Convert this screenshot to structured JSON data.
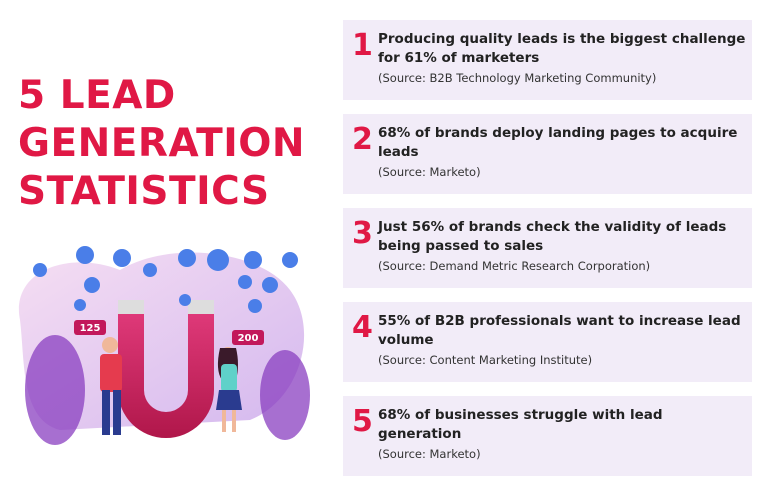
{
  "title": {
    "lines": [
      "5 LEAD",
      "GENERATION",
      "STATISTICS"
    ]
  },
  "items": [
    {
      "number": "1",
      "text": "Producing quality leads is the biggest challenge for 61% of marketers",
      "source": "(Source: B2B Technology Marketing Community)"
    },
    {
      "number": "2",
      "text": "68% of brands deploy landing pages to acquire leads",
      "source": "(Source: Marketo)"
    },
    {
      "number": "3",
      "text": "Just 56% of brands check the validity of leads being passed to sales",
      "source": "(Source: Demand Metric Research Corporation)"
    },
    {
      "number": "4",
      "text": "55% of B2B professionals want to increase lead volume",
      "source": "(Source: Content Marketing Institute)"
    },
    {
      "number": "5",
      "text": "68% of businesses struggle with lead generation",
      "source": "(Source: Marketo)"
    }
  ],
  "illustration": {
    "badges": [
      "125",
      "200"
    ]
  }
}
